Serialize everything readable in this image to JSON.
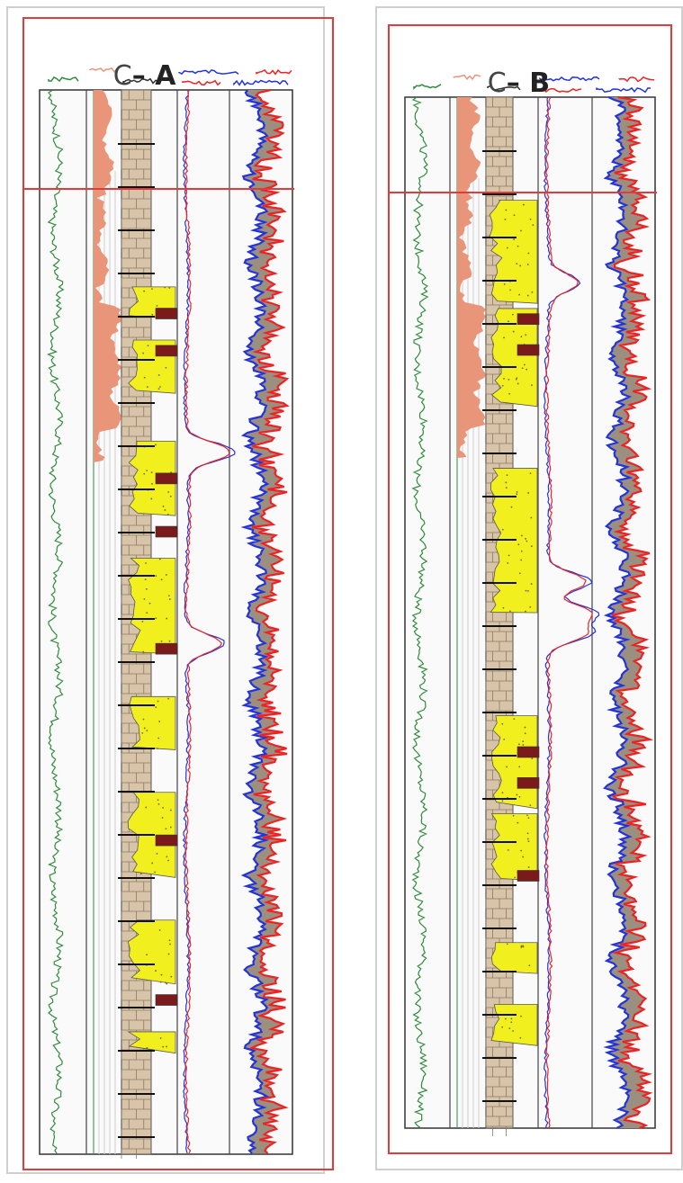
{
  "panels": [
    {
      "id": "panel-a",
      "well_prefix": "C",
      "dash": "–",
      "well_letter": "A",
      "sand_intervals": [
        [
          0.185,
          0.215
        ],
        [
          0.235,
          0.285
        ],
        [
          0.33,
          0.4
        ],
        [
          0.44,
          0.53
        ],
        [
          0.57,
          0.62
        ],
        [
          0.66,
          0.74
        ],
        [
          0.78,
          0.84
        ],
        [
          0.885,
          0.905
        ]
      ],
      "red_bands": [
        0.205,
        0.24,
        0.36,
        0.41,
        0.52,
        0.7,
        0.85
      ],
      "resistivity_peaks": [
        [
          0.34,
          0.55
        ],
        [
          0.52,
          0.45
        ]
      ]
    },
    {
      "id": "panel-b",
      "well_prefix": "C",
      "dash": "–",
      "well_letter": "B",
      "sand_intervals": [
        [
          0.1,
          0.2
        ],
        [
          0.205,
          0.3
        ],
        [
          0.36,
          0.5
        ],
        [
          0.6,
          0.69
        ],
        [
          0.695,
          0.76
        ],
        [
          0.82,
          0.85
        ],
        [
          0.88,
          0.92
        ]
      ],
      "red_bands": [
        0.21,
        0.24,
        0.63,
        0.66,
        0.75
      ],
      "resistivity_peaks": [
        [
          0.18,
          0.35
        ],
        [
          0.47,
          0.5
        ],
        [
          0.5,
          0.55
        ],
        [
          0.52,
          0.5
        ]
      ]
    }
  ],
  "colors": {
    "frame": "#e33b3b",
    "gamma": "#2e8b3a",
    "shale_fill": "#e8957a",
    "lithology_bg": "#d8c4a8",
    "sand": "#f2ef1e",
    "coal": "#7a1a1a",
    "log_blue": "#2233dd",
    "log_red": "#ee2222",
    "neutron_fill": "#9b8f80"
  }
}
